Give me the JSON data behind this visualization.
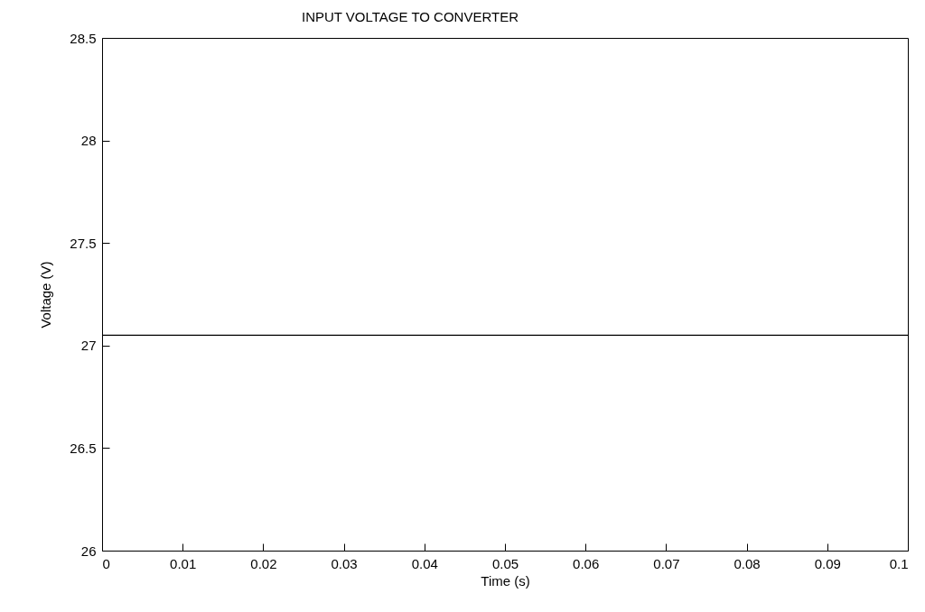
{
  "chart_data": {
    "type": "line",
    "title": "INPUT VOLTAGE TO CONVERTER",
    "xlabel": "Time (s)",
    "ylabel": "Voltage (V)",
    "x": [
      0,
      0.1
    ],
    "series": [
      {
        "color": "#000000",
        "values": [
          27.05,
          27.05
        ]
      }
    ],
    "xlim": [
      0,
      0.1
    ],
    "xticks": [
      0,
      0.01,
      0.02,
      0.03,
      0.04,
      0.05,
      0.06,
      0.07,
      0.08,
      0.09,
      0.1
    ],
    "ylim": [
      26,
      28.5
    ],
    "yticks": [
      26,
      26.5,
      27,
      27.5,
      28,
      28.5
    ],
    "grid": false,
    "legend": false,
    "marker": "none",
    "line_style": "solid"
  }
}
